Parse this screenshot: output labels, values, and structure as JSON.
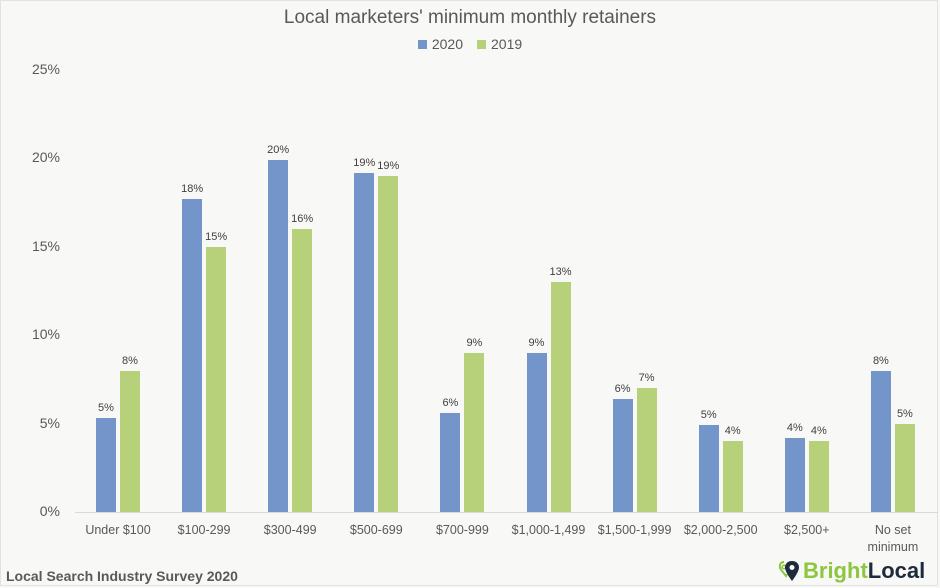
{
  "chart_data": {
    "type": "bar",
    "title": "Local marketers' minimum monthly retainers",
    "xlabel": "",
    "ylabel": "",
    "ylim": [
      0,
      25
    ],
    "yticks": [
      "0%",
      "5%",
      "10%",
      "15%",
      "20%",
      "25%"
    ],
    "grid": false,
    "legend_position": "top",
    "categories": [
      "Under $100",
      "$100-299",
      "$300-499",
      "$500-699",
      "$700-999",
      "$1,000-1,499",
      "$1,500-1,999",
      "$2,000-2,500",
      "$2,500+",
      "No set minimum"
    ],
    "series": [
      {
        "name": "2020",
        "color": "#7395c9",
        "values": [
          5.3,
          17.7,
          19.9,
          19.2,
          5.6,
          9.0,
          6.4,
          4.9,
          4.2,
          8.0
        ],
        "labels": [
          "5%",
          "18%",
          "20%",
          "19%",
          "6%",
          "9%",
          "6%",
          "5%",
          "4%",
          "8%"
        ]
      },
      {
        "name": "2019",
        "color": "#b6d17a",
        "values": [
          8.0,
          15.0,
          16.0,
          19.0,
          9.0,
          13.0,
          7.0,
          4.0,
          4.0,
          5.0
        ],
        "labels": [
          "8%",
          "15%",
          "16%",
          "19%",
          "9%",
          "13%",
          "7%",
          "4%",
          "4%",
          "5%"
        ]
      }
    ]
  },
  "footer": {
    "source": "Local Search Industry Survey 2020",
    "logo_part1": "Bright",
    "logo_part2": "Local"
  }
}
